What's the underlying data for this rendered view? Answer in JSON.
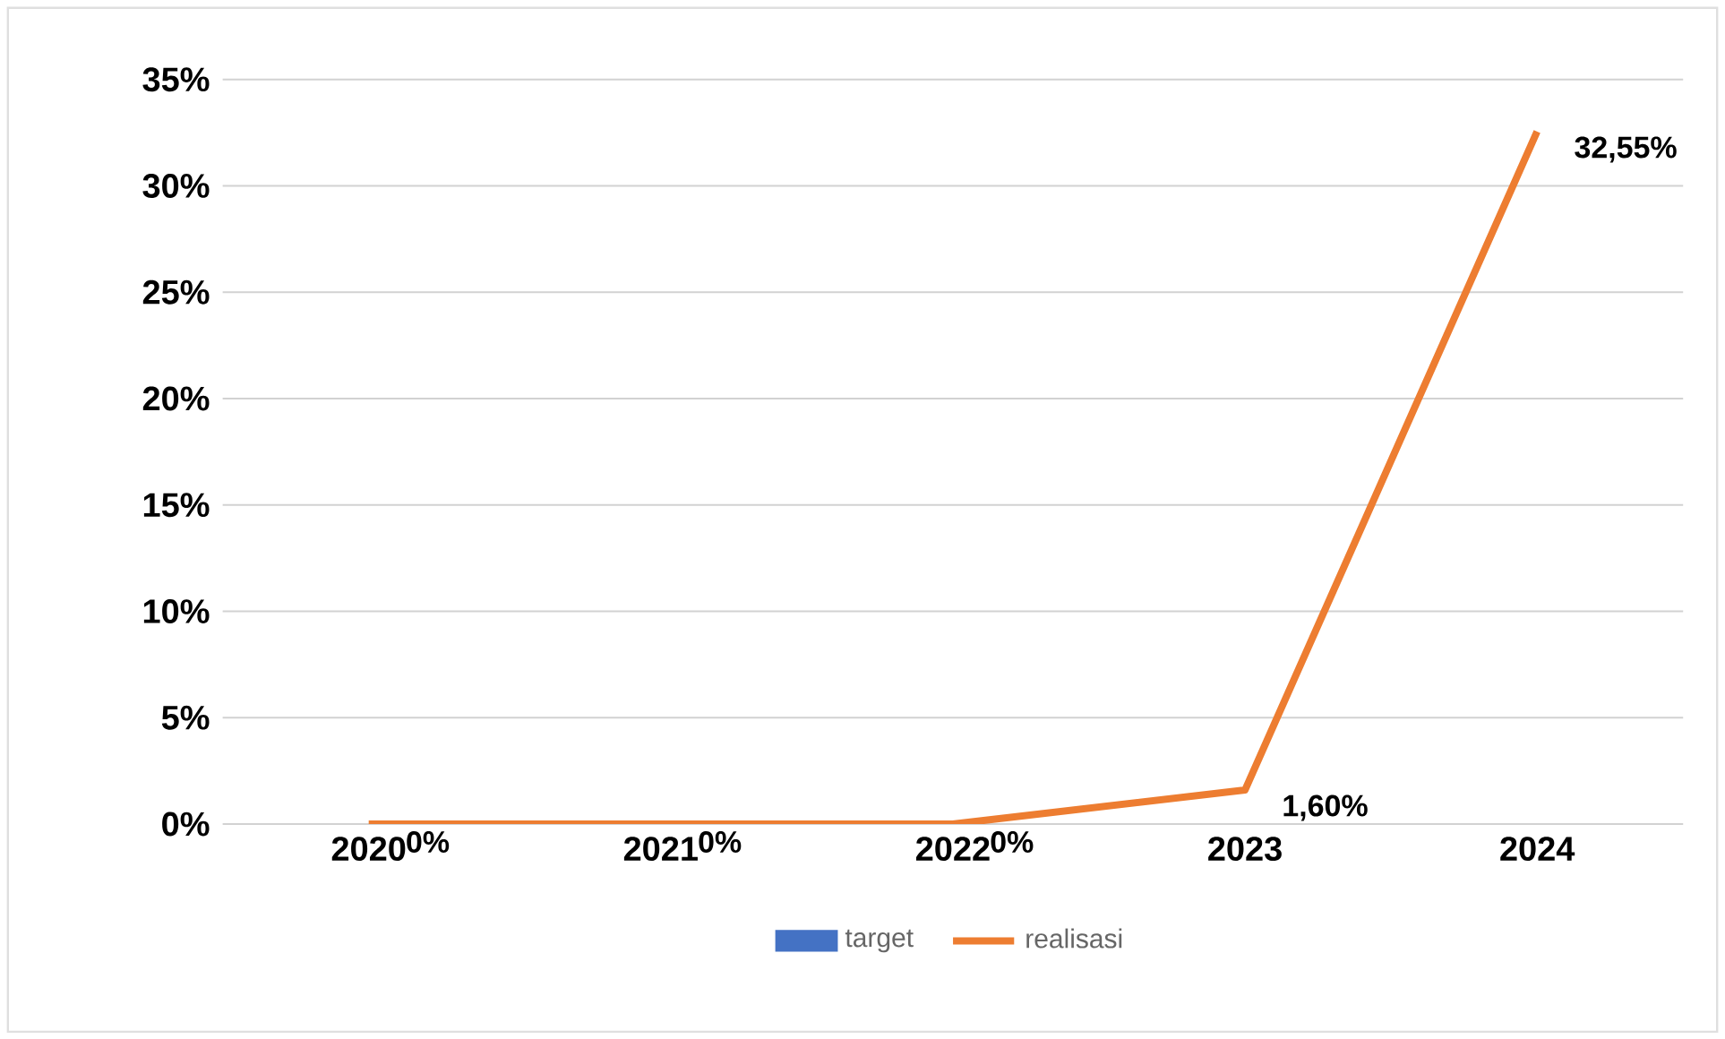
{
  "chart_data": {
    "type": "line",
    "categories": [
      "2020",
      "2021",
      "2022",
      "2023",
      "2024"
    ],
    "series": [
      {
        "name": "target",
        "type": "bar",
        "color": "#4472c4",
        "values": [
          null,
          null,
          null,
          null,
          null
        ]
      },
      {
        "name": "realisasi",
        "color": "#ed7d31",
        "values": [
          0,
          0,
          0,
          1.6,
          32.55
        ],
        "value_labels": [
          "0%",
          "0%",
          "0%",
          "1,60%",
          "32,55%"
        ]
      }
    ],
    "ylim": [
      0,
      35
    ],
    "yticks": [
      {
        "value": 0,
        "label": "0%"
      },
      {
        "value": 5,
        "label": "5%"
      },
      {
        "value": 10,
        "label": "10%"
      },
      {
        "value": 15,
        "label": "15%"
      },
      {
        "value": 20,
        "label": "20%"
      },
      {
        "value": 25,
        "label": "25%"
      },
      {
        "value": 30,
        "label": "30%"
      },
      {
        "value": 35,
        "label": "35%"
      }
    ],
    "grid": "y",
    "legend": "bottom",
    "marker": "none",
    "line_style": "solid"
  }
}
